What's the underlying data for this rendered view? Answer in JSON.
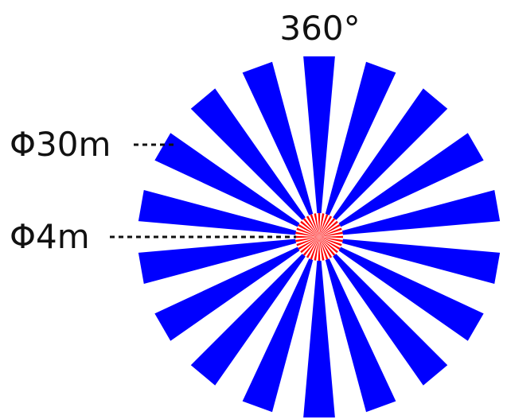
{
  "labels": {
    "angle": "360°",
    "outer_diameter": "Φ30m",
    "inner_diameter": "Φ4m"
  },
  "star": {
    "spoke_count": 18,
    "outer_color": "#0000ff",
    "inner_color": "#ff0000",
    "background_color": "#ffffff"
  }
}
